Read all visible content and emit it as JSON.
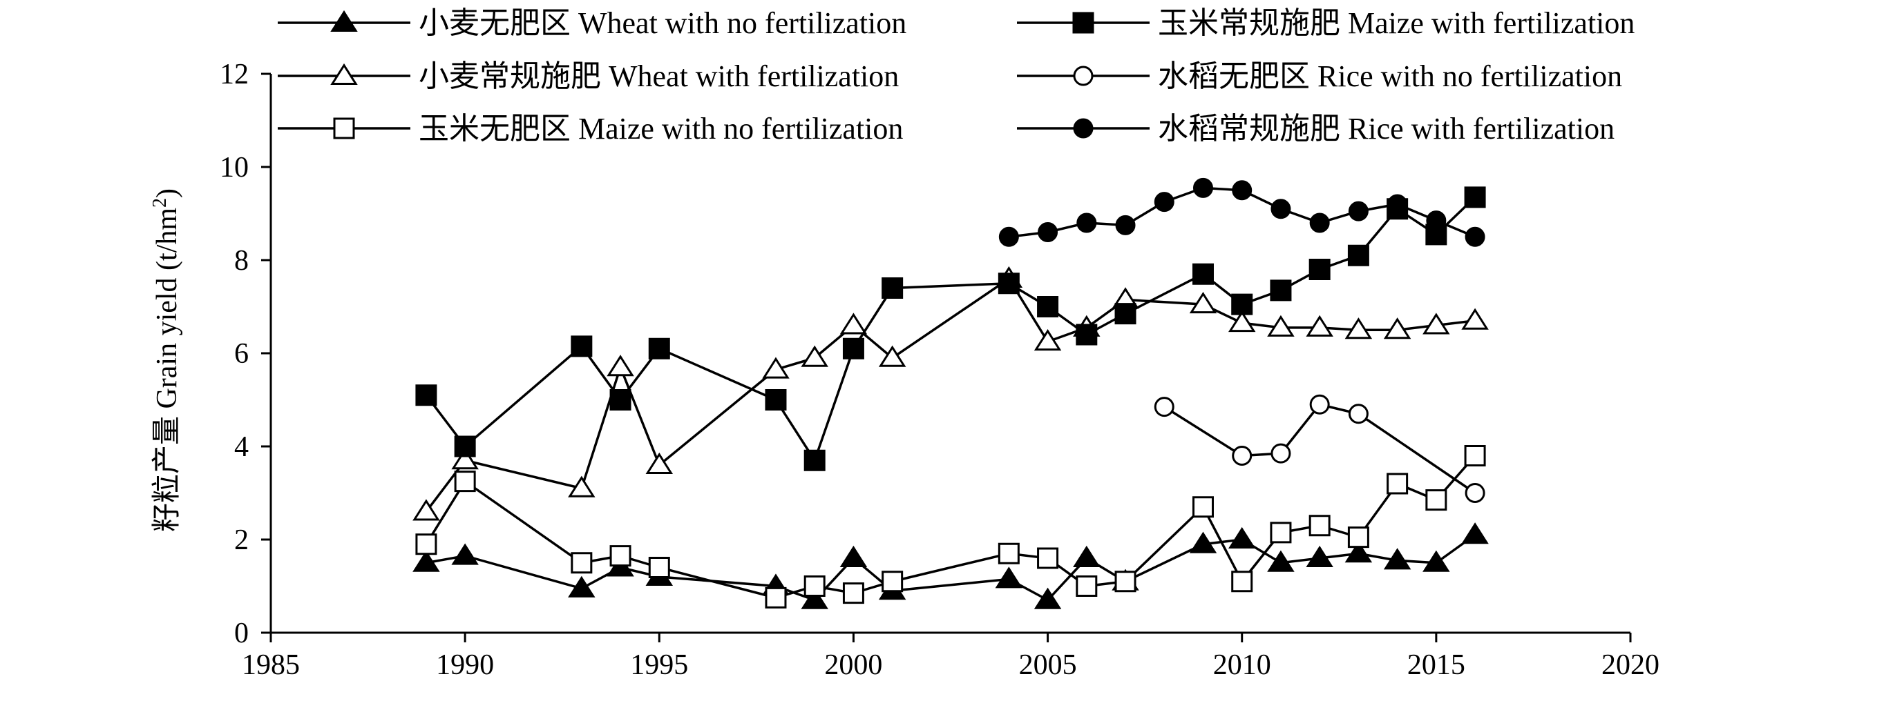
{
  "chart_data": {
    "type": "line",
    "title": "",
    "xlabel": "",
    "ylabel": "籽粒产量 Grain yield (t/hm",
    "ylabel_sup": "2",
    "ylabel_end": ")",
    "xlim": [
      1985,
      2020
    ],
    "ylim": [
      0,
      12
    ],
    "xticks": [
      1985,
      1990,
      1995,
      2000,
      2005,
      2010,
      2015,
      2020
    ],
    "yticks": [
      0,
      2,
      4,
      6,
      8,
      10,
      12
    ],
    "grid": false,
    "legend_position": "top",
    "series": [
      {
        "name": "小麦无肥区 Wheat with no fertilization",
        "marker": "triangle",
        "fill": "filled",
        "x": [
          1989,
          1990,
          1993,
          1994,
          1995,
          1998,
          1999,
          2000,
          2001,
          2004,
          2005,
          2006,
          2007,
          2009,
          2010,
          2011,
          2012,
          2013,
          2014,
          2015,
          2016
        ],
        "y": [
          1.5,
          1.65,
          0.95,
          1.4,
          1.2,
          1.0,
          0.7,
          1.6,
          0.9,
          1.15,
          0.7,
          1.6,
          1.1,
          1.9,
          2.0,
          1.5,
          1.6,
          1.7,
          1.55,
          1.5,
          2.1
        ]
      },
      {
        "name": "小麦常规施肥 Wheat with fertilization",
        "marker": "triangle",
        "fill": "open",
        "x": [
          1989,
          1990,
          1993,
          1994,
          1995,
          1998,
          1999,
          2000,
          2001,
          2004,
          2005,
          2006,
          2007,
          2009,
          2010,
          2011,
          2012,
          2013,
          2014,
          2015,
          2016
        ],
        "y": [
          2.6,
          3.7,
          3.1,
          5.7,
          3.6,
          5.65,
          5.9,
          6.6,
          5.9,
          7.6,
          6.25,
          6.55,
          7.15,
          7.05,
          6.65,
          6.55,
          6.55,
          6.5,
          6.5,
          6.6,
          6.7
        ]
      },
      {
        "name": "玉米无肥区 Maize with no fertilization",
        "marker": "square",
        "fill": "open",
        "x": [
          1989,
          1990,
          1993,
          1994,
          1995,
          1998,
          1999,
          2000,
          2001,
          2004,
          2005,
          2006,
          2007,
          2009,
          2010,
          2011,
          2012,
          2013,
          2014,
          2015,
          2016
        ],
        "y": [
          1.9,
          3.25,
          1.5,
          1.65,
          1.4,
          0.75,
          1.0,
          0.85,
          1.1,
          1.7,
          1.6,
          1.0,
          1.1,
          2.7,
          1.1,
          2.15,
          2.3,
          2.05,
          3.2,
          2.85,
          3.8
        ]
      },
      {
        "name": "玉米常规施肥 Maize with fertilization",
        "marker": "square",
        "fill": "filled",
        "x": [
          1989,
          1990,
          1993,
          1994,
          1995,
          1998,
          1999,
          2000,
          2001,
          2004,
          2005,
          2006,
          2007,
          2009,
          2010,
          2011,
          2012,
          2013,
          2014,
          2015,
          2016
        ],
        "y": [
          5.1,
          4.0,
          6.15,
          5.0,
          6.1,
          5.0,
          3.7,
          6.1,
          7.4,
          7.5,
          7.0,
          6.4,
          6.85,
          7.7,
          7.05,
          7.35,
          7.8,
          8.1,
          9.1,
          8.55,
          9.35
        ]
      },
      {
        "name": "水稻无肥区 Rice with no fertilization",
        "marker": "circle",
        "fill": "open",
        "x": [
          2008,
          2010,
          2011,
          2012,
          2013,
          2016
        ],
        "y": [
          4.85,
          3.8,
          3.85,
          4.9,
          4.7,
          3.0
        ]
      },
      {
        "name": "水稻常规施肥 Rice with fertilization",
        "marker": "circle",
        "fill": "filled",
        "x": [
          2004,
          2005,
          2006,
          2007,
          2008,
          2009,
          2010,
          2011,
          2012,
          2013,
          2014,
          2015,
          2016
        ],
        "y": [
          8.5,
          8.6,
          8.8,
          8.75,
          9.25,
          9.55,
          9.5,
          9.1,
          8.8,
          9.05,
          9.2,
          8.85,
          8.5
        ]
      }
    ]
  }
}
